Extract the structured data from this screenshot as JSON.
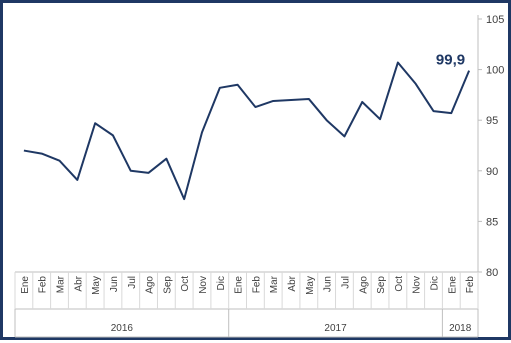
{
  "chart_data": {
    "type": "line",
    "categories": [
      "Ene",
      "Feb",
      "Mar",
      "Abr",
      "May",
      "Jun",
      "Jul",
      "Ago",
      "Sep",
      "Oct",
      "Nov",
      "Dic",
      "Ene",
      "Feb",
      "Mar",
      "Abr",
      "May",
      "Jun",
      "Jul",
      "Ago",
      "Sep",
      "Oct",
      "Nov",
      "Dic",
      "Ene",
      "Feb"
    ],
    "years": [
      {
        "label": "2016",
        "count": 12
      },
      {
        "label": "2017",
        "count": 12
      },
      {
        "label": "2018",
        "count": 2
      }
    ],
    "series": [
      {
        "values": [
          92.0,
          91.7,
          91.0,
          89.1,
          94.7,
          93.5,
          90.0,
          89.8,
          91.2,
          87.2,
          93.8,
          98.2,
          98.5,
          96.3,
          96.9,
          97.0,
          97.1,
          95.0,
          93.4,
          96.8,
          95.1,
          100.7,
          98.6,
          95.9,
          95.7,
          99.9
        ],
        "color": "#1f3864"
      }
    ],
    "ylim": [
      80,
      105
    ],
    "yticks": [
      80,
      85,
      90,
      95,
      100,
      105
    ],
    "y_axis_side": "right",
    "grid": false,
    "annotation": {
      "text": "99,9",
      "index": 25,
      "color": "#1f3864"
    },
    "title": "",
    "xlabel": "",
    "ylabel": ""
  }
}
